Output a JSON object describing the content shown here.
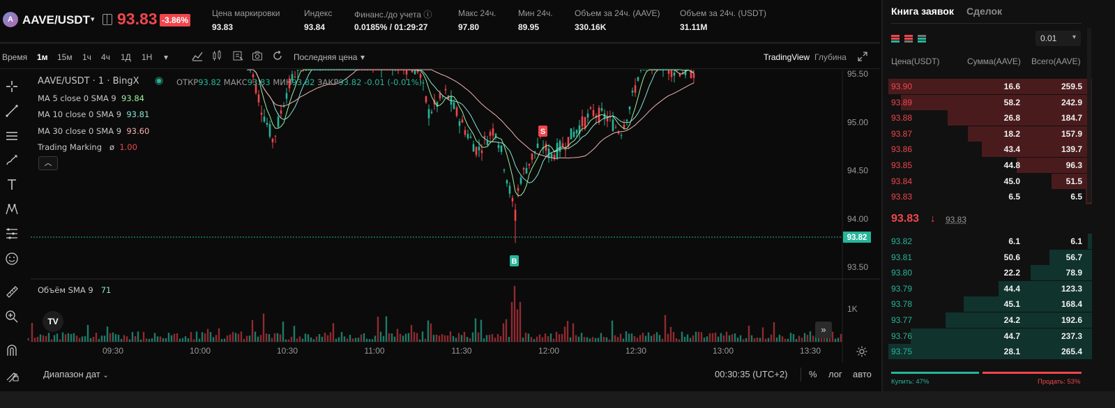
{
  "header": {
    "coin_icon": "aave-logo",
    "symbol": "AAVE/USDT",
    "last_price": "93.83",
    "change": "-3.86%",
    "stats": [
      {
        "label": "Цена маркировки",
        "value": "93.83"
      },
      {
        "label": "Индекс",
        "value": "93.84"
      },
      {
        "label": "Финанс./до учета ⓘ",
        "value": "0.0185% / 01:29:27"
      },
      {
        "label": "Макс 24ч.",
        "value": "97.80"
      },
      {
        "label": "Мин 24ч.",
        "value": "89.95"
      },
      {
        "label": "Объем за 24ч. (AAVE)",
        "value": "330.16K"
      },
      {
        "label": "Объем за 24ч. (USDT)",
        "value": "31.11M"
      }
    ]
  },
  "toolbar": {
    "time_label": "Время",
    "intervals": [
      "1м",
      "15м",
      "1ч",
      "4ч",
      "1Д",
      "1Н"
    ],
    "active_interval": "1м",
    "price_source": "Последняя цена",
    "view_tradingview": "TradingView",
    "view_depth": "Глубина"
  },
  "chart": {
    "title": "AAVE/USDT · 1 · BingX",
    "ohlc": {
      "o_lbl": "ОТКР",
      "o": "93.82",
      "h_lbl": "МАКС",
      "h": "93.83",
      "l_lbl": "МИН",
      "l": "93.82",
      "c_lbl": "ЗАКР",
      "c": "93.82",
      "chg": "-0.01 (-0.01%)"
    },
    "legends": [
      {
        "label": "MA 5 close 0 SMA 9",
        "value": "93.84"
      },
      {
        "label": "MA 10 close 0 SMA 9",
        "value": "93.81"
      },
      {
        "label": "MA 30 close 0 SMA 9",
        "value": "93.60"
      },
      {
        "label": "Trading Marking",
        "symbol": "ø",
        "value": "1.00"
      }
    ],
    "volume_legend": {
      "label": "Объём SMA 9",
      "value": "71"
    },
    "price_axis": [
      "95.50",
      "95.00",
      "94.50",
      "94.00",
      "93.50"
    ],
    "current_price_tag": "93.82",
    "volume_axis": "1K",
    "time_axis": [
      "09:30",
      "10:00",
      "10:30",
      "11:00",
      "11:30",
      "12:00",
      "12:30",
      "13:00",
      "13:30"
    ],
    "marker_sell": "S",
    "marker_buy": "B",
    "logo_text": "TV"
  },
  "bottom": {
    "date_range": "Диапазон дат",
    "clock": "00:30:35 (UTC+2)",
    "percent": "%",
    "log": "лог",
    "auto": "авто"
  },
  "orderbook": {
    "tab_book": "Книга заявок",
    "tab_trades": "Сделок",
    "precision": "0.01",
    "col_price": "Цена(USDT)",
    "col_amount": "Сумма(AAVE)",
    "col_total": "Всего(AAVE)",
    "asks": [
      {
        "price": "93.90",
        "amount": "16.6",
        "total": "259.5",
        "depth": 1.0
      },
      {
        "price": "93.89",
        "amount": "58.2",
        "total": "242.9",
        "depth": 0.94
      },
      {
        "price": "93.88",
        "amount": "26.8",
        "total": "184.7",
        "depth": 0.71
      },
      {
        "price": "93.87",
        "amount": "18.2",
        "total": "157.9",
        "depth": 0.61
      },
      {
        "price": "93.86",
        "amount": "43.4",
        "total": "139.7",
        "depth": 0.54
      },
      {
        "price": "93.85",
        "amount": "44.8",
        "total": "96.3",
        "depth": 0.37
      },
      {
        "price": "93.84",
        "amount": "45.0",
        "total": "51.5",
        "depth": 0.2
      },
      {
        "price": "93.83",
        "amount": "6.5",
        "total": "6.5",
        "depth": 0.03
      }
    ],
    "mid_price": "93.83",
    "mid_mark": "93.83",
    "bids": [
      {
        "price": "93.82",
        "amount": "6.1",
        "total": "6.1",
        "depth": 0.02
      },
      {
        "price": "93.81",
        "amount": "50.6",
        "total": "56.7",
        "depth": 0.21
      },
      {
        "price": "93.80",
        "amount": "22.2",
        "total": "78.9",
        "depth": 0.3
      },
      {
        "price": "93.79",
        "amount": "44.4",
        "total": "123.3",
        "depth": 0.46
      },
      {
        "price": "93.78",
        "amount": "45.1",
        "total": "168.4",
        "depth": 0.63
      },
      {
        "price": "93.77",
        "amount": "24.2",
        "total": "192.6",
        "depth": 0.72
      },
      {
        "price": "93.76",
        "amount": "44.7",
        "total": "237.3",
        "depth": 0.89
      },
      {
        "price": "93.75",
        "amount": "28.1",
        "total": "265.4",
        "depth": 1.0
      }
    ],
    "buy_ratio_label": "Купить: 47%",
    "sell_ratio_label": "Продать: 53%",
    "buy_ratio": 0.47,
    "sell_ratio": 0.53
  },
  "colors": {
    "up": "#27b59a",
    "down": "#f0464d",
    "ma5": "#9ef0a0",
    "ma10": "#86e4d2",
    "ma30": "#f4b3b3"
  }
}
